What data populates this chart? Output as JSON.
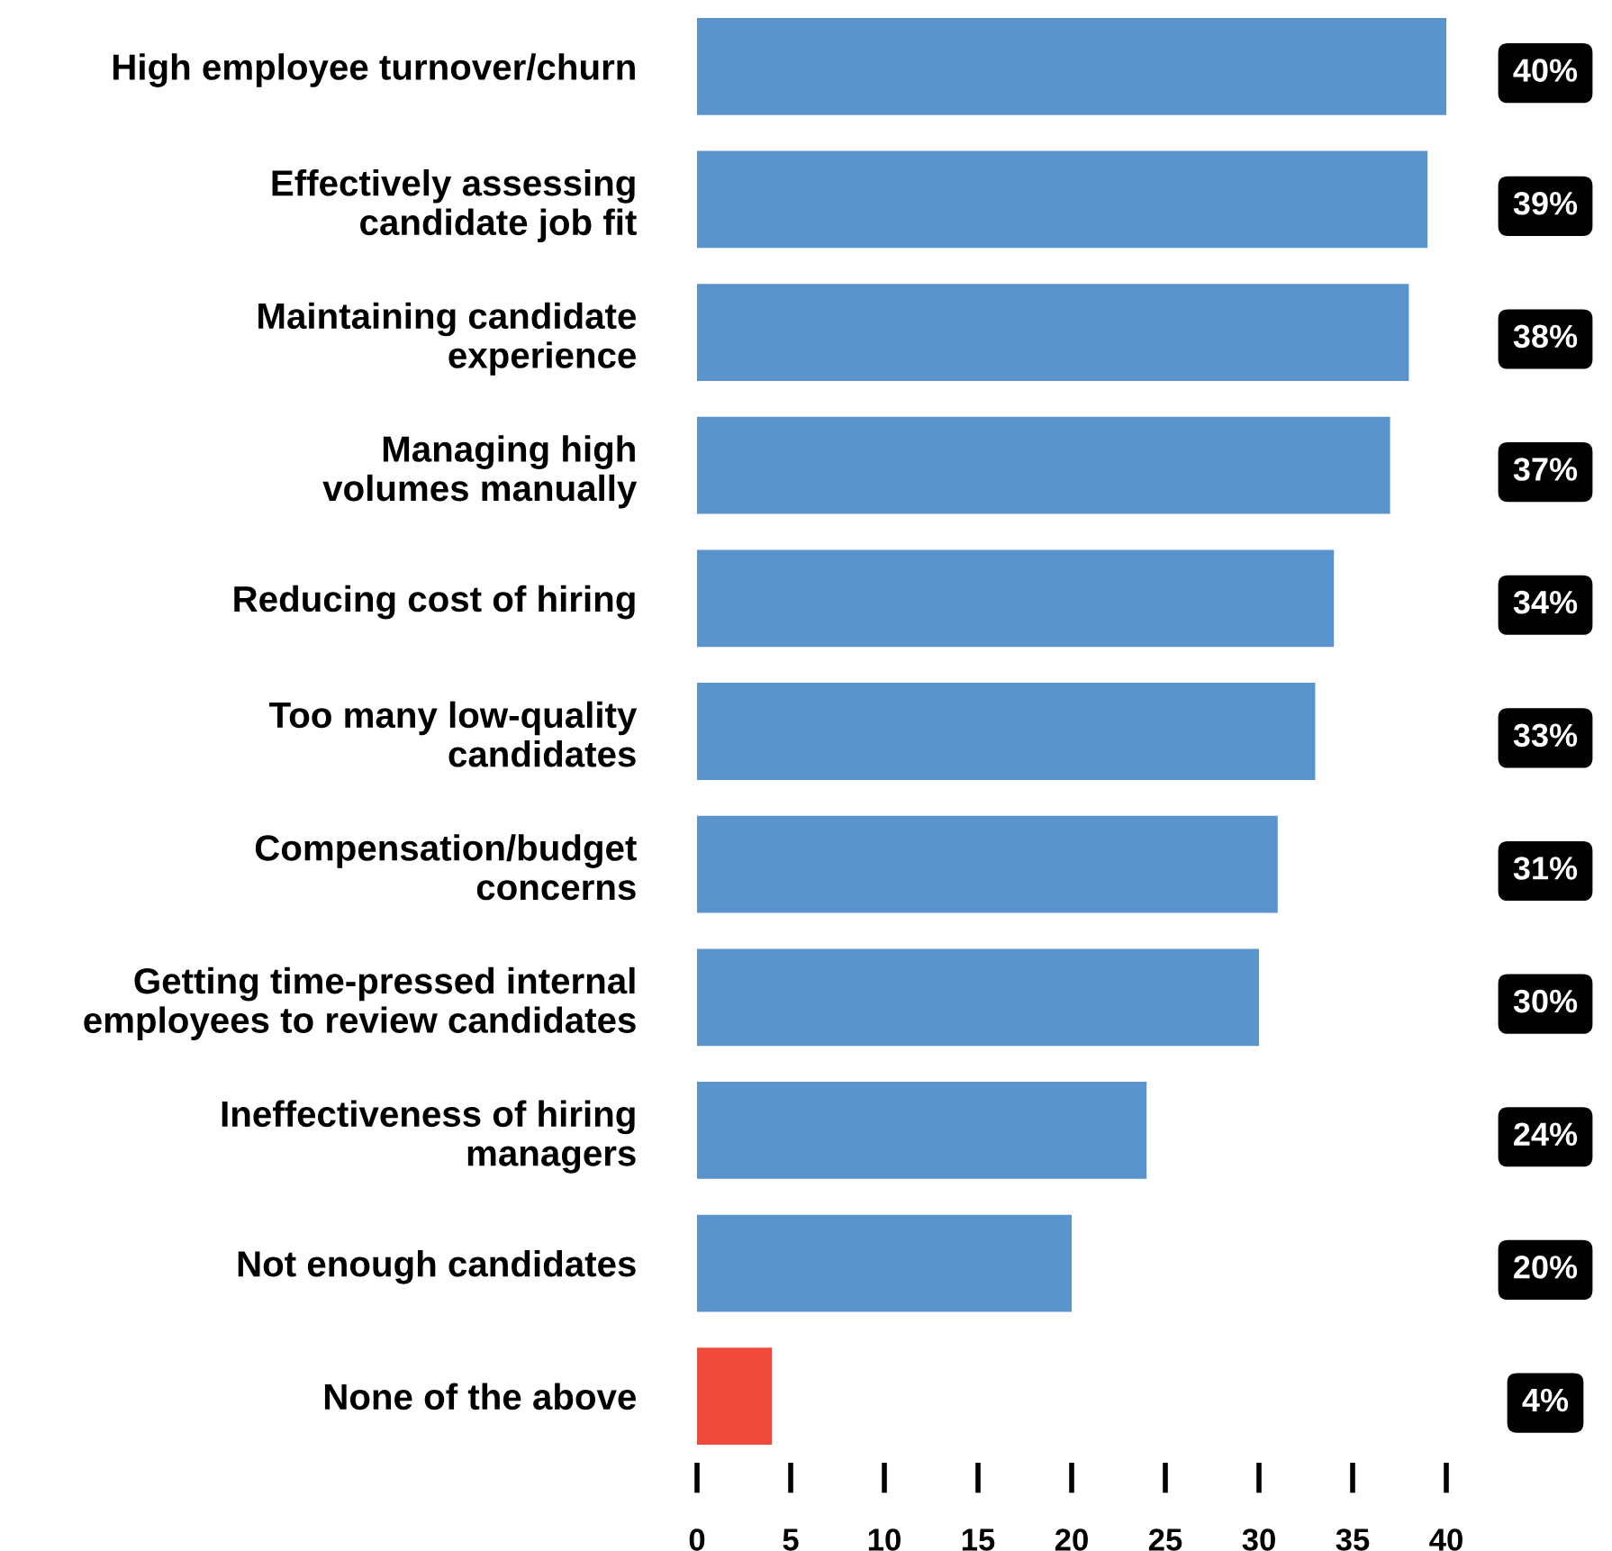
{
  "chart_data": {
    "type": "bar",
    "orientation": "horizontal",
    "categories": [
      "High employee turnover/churn",
      "Effectively assessing\ncandidate job fit",
      "Maintaining candidate\nexperience",
      "Managing high\nvolumes manually",
      "Reducing cost of hiring",
      "Too many low-quality\ncandidates",
      "Compensation/budget\nconcerns",
      "Getting time-pressed internal\nemployees to review candidates",
      "Ineffectiveness of hiring\nmanagers",
      "Not enough candidates",
      "None of the above"
    ],
    "values": [
      40,
      39,
      38,
      37,
      34,
      33,
      31,
      30,
      24,
      20,
      4
    ],
    "value_labels": [
      "40%",
      "39%",
      "38%",
      "37%",
      "34%",
      "33%",
      "31%",
      "30%",
      "24%",
      "20%",
      "4%"
    ],
    "colors": [
      "#5b93cd",
      "#5b93cd",
      "#5b93cd",
      "#5b93cd",
      "#5b93cd",
      "#5b93cd",
      "#5b93cd",
      "#5b93cd",
      "#5b93cd",
      "#5b93cd",
      "#ef4a3c"
    ],
    "xlim": [
      0,
      40
    ],
    "xticks": [
      0,
      5,
      10,
      15,
      20,
      25,
      30,
      35,
      40
    ],
    "grid": false,
    "legend": false
  }
}
